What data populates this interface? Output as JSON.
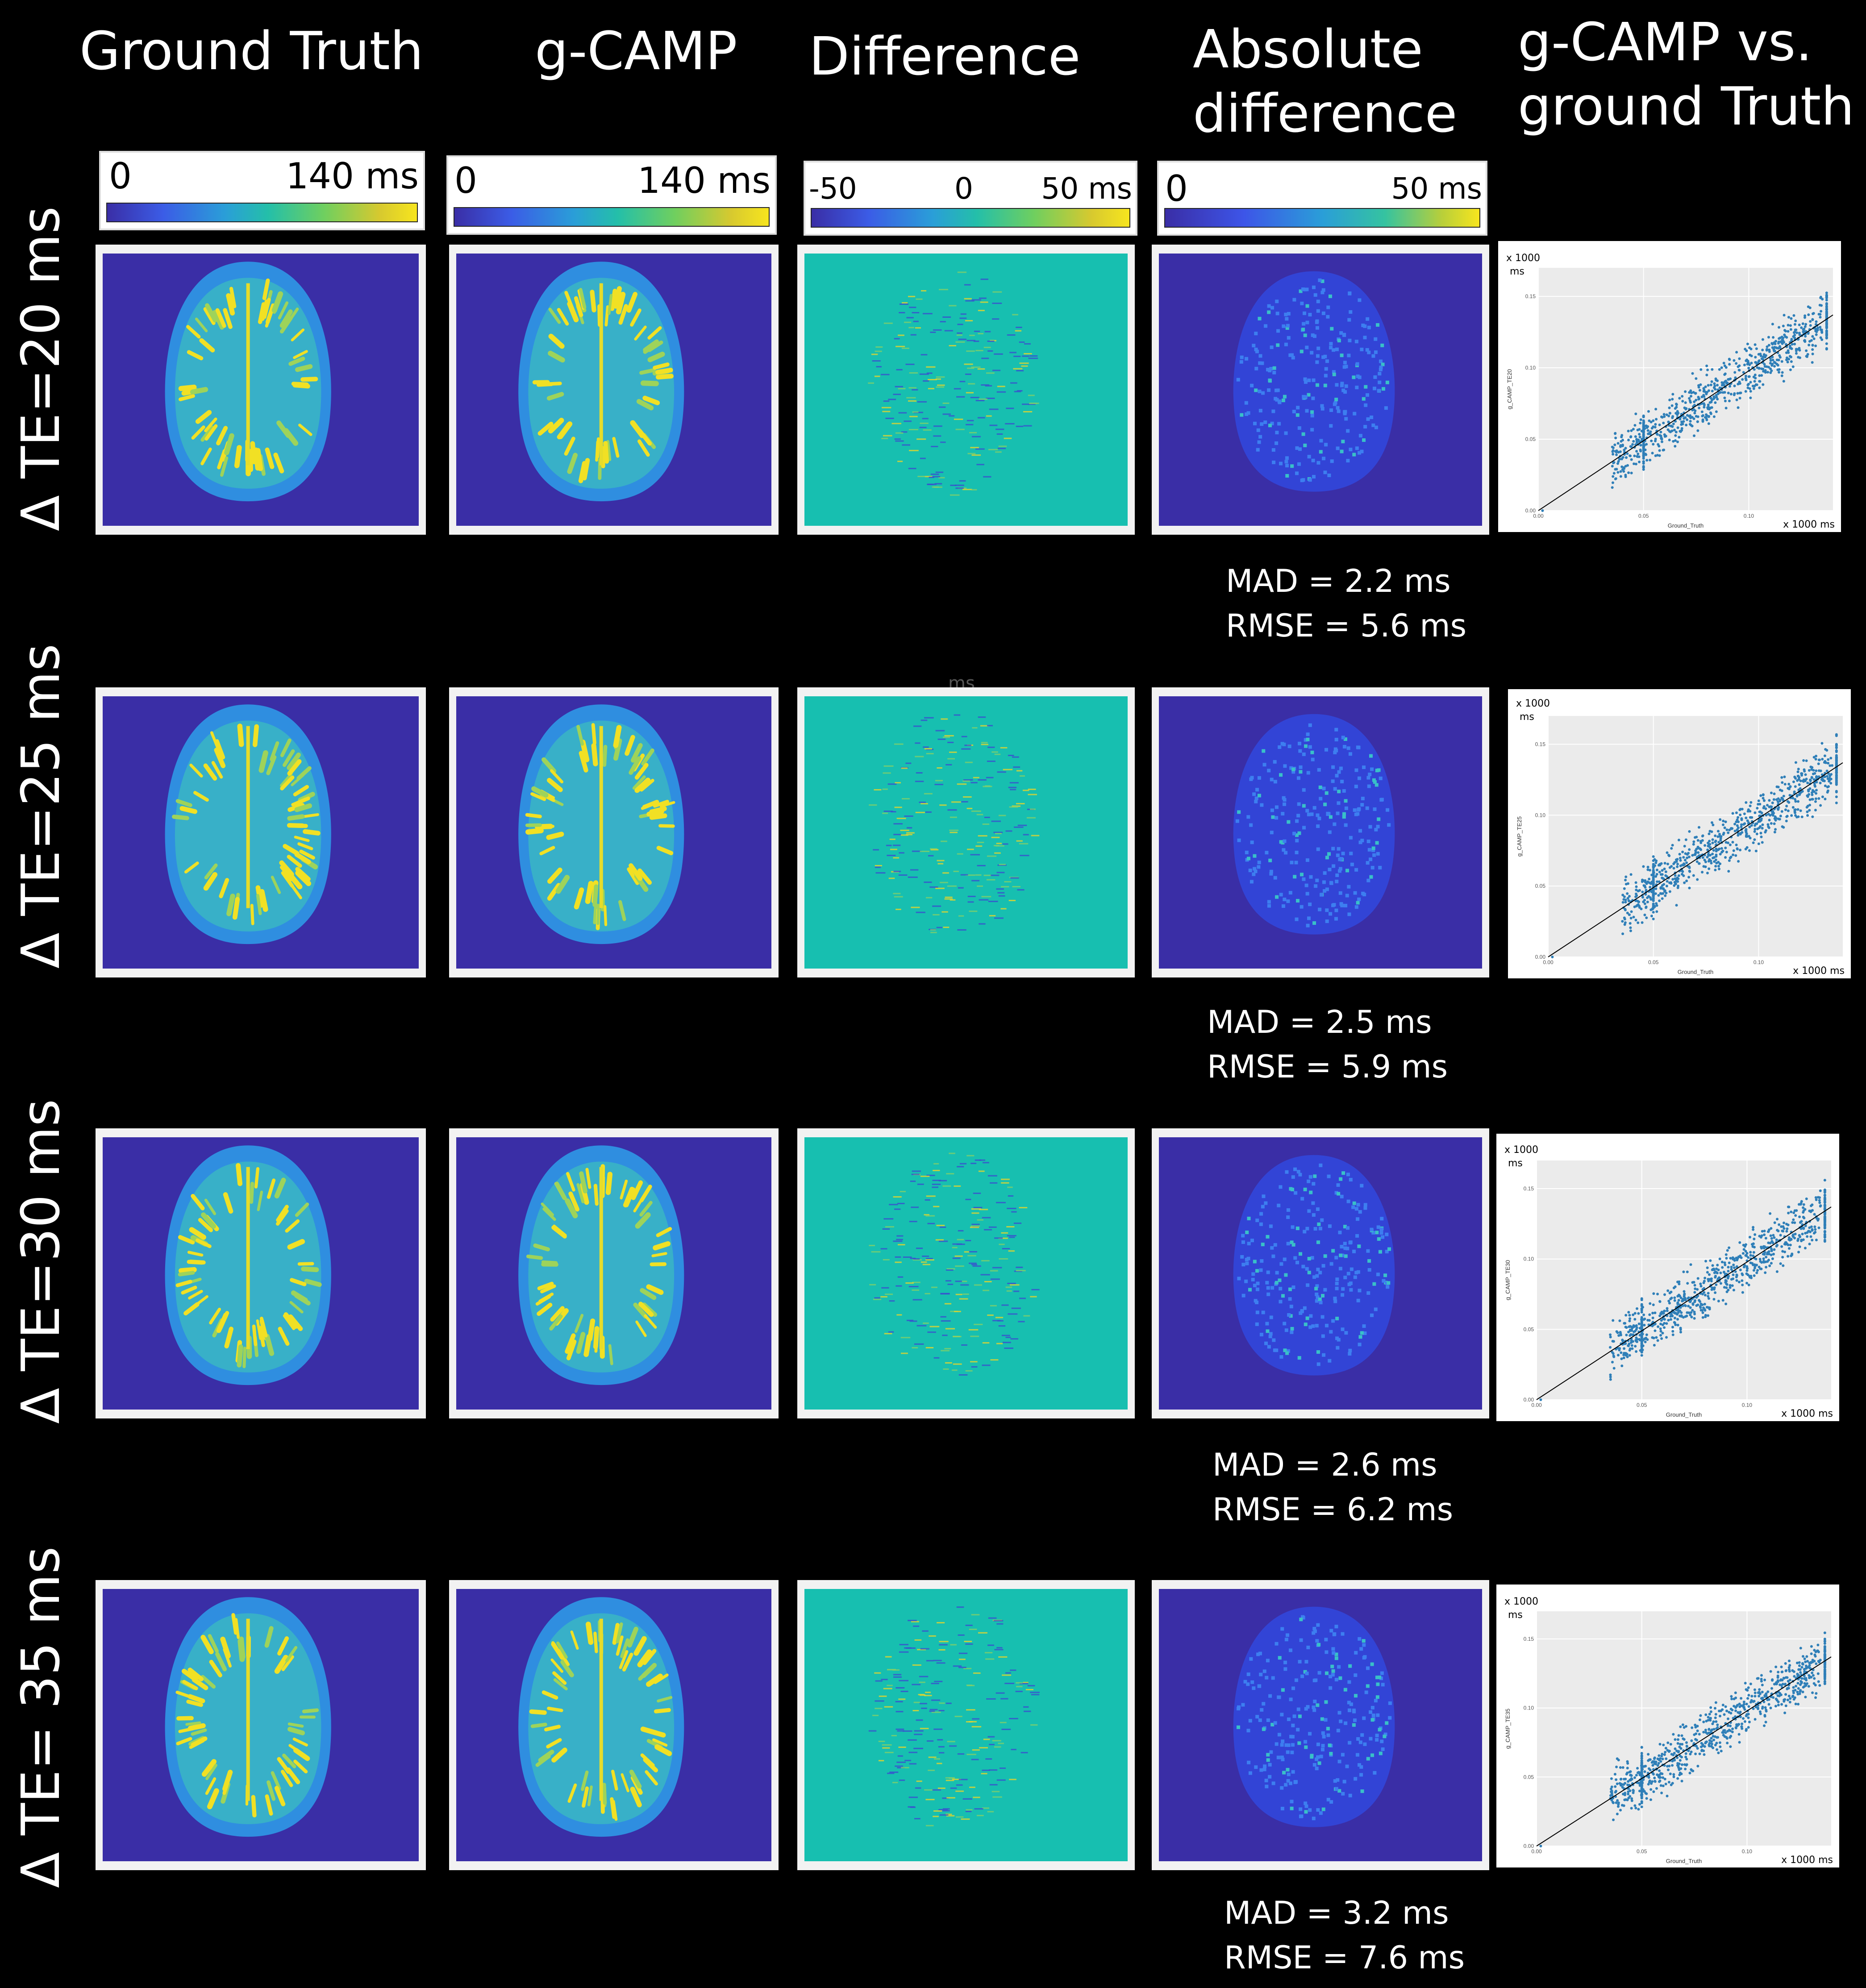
{
  "columns": {
    "ground_truth": "Ground Truth",
    "gcamp": "g-CAMP",
    "difference": "Difference",
    "absdiff_line1": "Absolute",
    "absdiff_line2": "difference",
    "scatter_line1": "g-CAMP vs.",
    "scatter_line2": "ground Truth"
  },
  "colorbars": {
    "gt": {
      "min": "0",
      "max": "140 ms"
    },
    "gcamp": {
      "min": "0",
      "max": "140 ms"
    },
    "diff": {
      "min": "-50",
      "mid": "0",
      "max": "50 ms"
    },
    "absdiff": {
      "min": "0",
      "max": "50 ms"
    }
  },
  "rows": [
    {
      "label": "Δ TE=20 ms",
      "mad": "MAD = 2.2 ms",
      "rmse": "RMSE = 5.6 ms",
      "ylabel": "g_CAMP_TE20"
    },
    {
      "label": "Δ TE=25 ms",
      "mad": "MAD = 2.5 ms",
      "rmse": "RMSE = 5.9 ms",
      "ylabel": "g_CAMP_TE25"
    },
    {
      "label": "Δ TE=30 ms",
      "mad": "MAD = 2.6 ms",
      "rmse": "RMSE = 6.2 ms",
      "ylabel": "g_CAMP_TE30"
    },
    {
      "label": "Δ TE= 35 ms",
      "mad": "MAD = 3.2 ms",
      "rmse": "RMSE = 7.6 ms",
      "ylabel": "g_CAMP_TE35"
    }
  ],
  "scatter": {
    "y_scale_label": "x 1000",
    "y_unit": "ms",
    "x_scale_label": "x 1000 ms",
    "xlabel": "Ground_Truth",
    "x_ticks": [
      "0.00",
      "0.05",
      "0.10"
    ],
    "y_ticks": [
      "0.00",
      "0.05",
      "0.10",
      "0.15"
    ]
  },
  "stray_text": "ms",
  "colors": {
    "background": "#000000",
    "map_bg": "#3a2ea6",
    "diff_bg": "#17bfb0",
    "brain_outer": "#2f8ee0",
    "brain_fill": "#38b0c8",
    "scatter_point": "#2f7fb8"
  },
  "chart_data": [
    {
      "type": "scatter",
      "title": "",
      "xlabel": "Ground_Truth",
      "ylabel": "g_CAMP_TE20",
      "x_unit": "x 1000 ms",
      "y_unit": "x 1000 ms",
      "xlim": [
        0.0,
        0.14
      ],
      "ylim": [
        0.0,
        0.17
      ],
      "fit_line": {
        "x": [
          0.0,
          0.14
        ],
        "y": [
          0.0,
          0.137
        ]
      }
    },
    {
      "type": "scatter",
      "title": "",
      "xlabel": "Ground_Truth",
      "ylabel": "g_CAMP_TE25",
      "x_unit": "x 1000 ms",
      "y_unit": "x 1000 ms",
      "xlim": [
        0.0,
        0.14
      ],
      "ylim": [
        0.0,
        0.17
      ],
      "fit_line": {
        "x": [
          0.0,
          0.14
        ],
        "y": [
          0.0,
          0.137
        ]
      }
    },
    {
      "type": "scatter",
      "title": "",
      "xlabel": "Ground_Truth",
      "ylabel": "g_CAMP_TE30",
      "x_unit": "x 1000 ms",
      "y_unit": "x 1000 ms",
      "xlim": [
        0.0,
        0.14
      ],
      "ylim": [
        0.0,
        0.17
      ],
      "fit_line": {
        "x": [
          0.0,
          0.14
        ],
        "y": [
          0.0,
          0.137
        ]
      }
    },
    {
      "type": "scatter",
      "title": "",
      "xlabel": "Ground_Truth",
      "ylabel": "g_CAMP_TE35",
      "x_unit": "x 1000 ms",
      "y_unit": "x 1000 ms",
      "xlim": [
        0.0,
        0.14
      ],
      "ylim": [
        0.0,
        0.17
      ],
      "fit_line": {
        "x": [
          0.0,
          0.14
        ],
        "y": [
          0.0,
          0.137
        ]
      }
    }
  ]
}
